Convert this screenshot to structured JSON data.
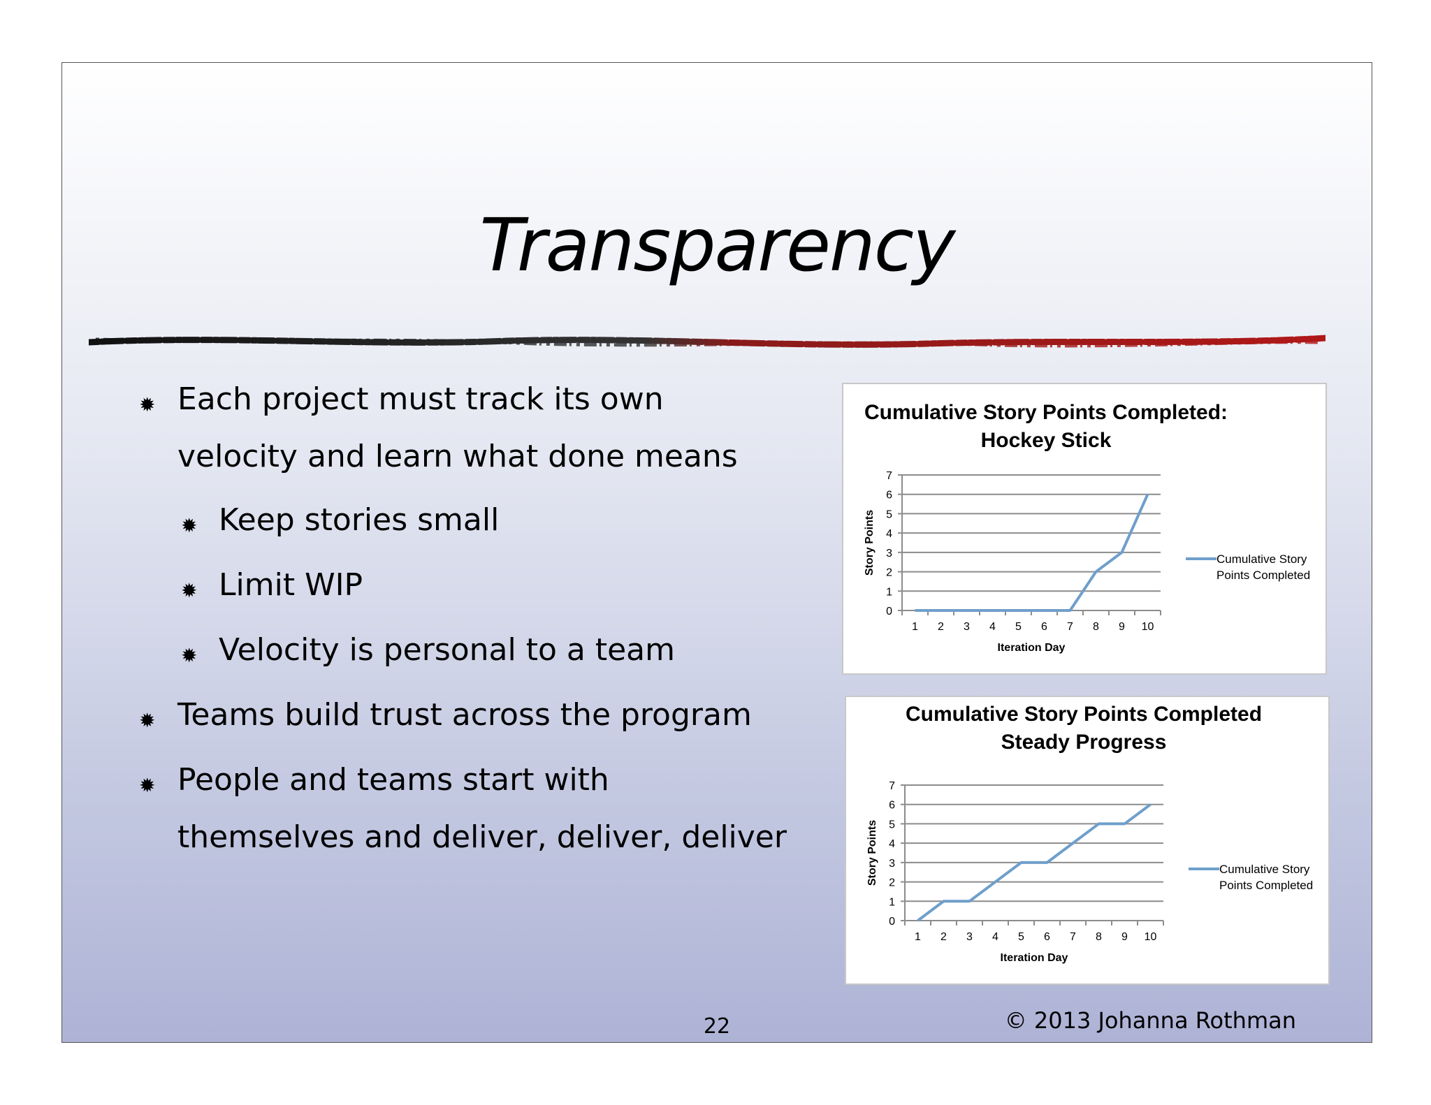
{
  "slide": {
    "title": "Transparency",
    "page_number": "22",
    "copyright": "© 2013 Johanna Rothman",
    "bullets": [
      {
        "level": 1,
        "lines": [
          "Each project must track its own",
          "velocity and learn what done means"
        ]
      },
      {
        "level": 2,
        "lines": [
          "Keep stories small"
        ]
      },
      {
        "level": 2,
        "lines": [
          "Limit WIP"
        ]
      },
      {
        "level": 2,
        "lines": [
          "Velocity is personal to a team"
        ]
      },
      {
        "level": 1,
        "lines": [
          "Teams build trust across the program"
        ]
      },
      {
        "level": 1,
        "lines": [
          "People and teams start with",
          "themselves and deliver, deliver, deliver"
        ]
      }
    ],
    "bullet_glyph": "✹"
  },
  "chart_data": [
    {
      "type": "line",
      "title": [
        "Cumulative Story Points Completed:",
        "Hockey Stick"
      ],
      "xlabel": "Iteration Day",
      "ylabel": "Story Points",
      "categories": [
        "1",
        "2",
        "3",
        "4",
        "5",
        "6",
        "7",
        "8",
        "9",
        "10"
      ],
      "ylim": [
        0,
        7
      ],
      "yticks": [
        "0",
        "1",
        "2",
        "3",
        "4",
        "5",
        "6",
        "7"
      ],
      "grid": true,
      "legend_position": "right",
      "series": [
        {
          "name": "Cumulative Story Points Completed",
          "legend_lines": [
            "Cumulative Story",
            "Points Completed"
          ],
          "color": "#6f9fcb",
          "values": [
            0,
            0,
            0,
            0,
            0,
            0,
            0,
            2,
            3,
            6
          ]
        }
      ]
    },
    {
      "type": "line",
      "title": [
        "Cumulative Story Points Completed",
        "Steady Progress"
      ],
      "xlabel": "Iteration Day",
      "ylabel": "Story Points",
      "categories": [
        "1",
        "2",
        "3",
        "4",
        "5",
        "6",
        "7",
        "8",
        "9",
        "10"
      ],
      "ylim": [
        0,
        7
      ],
      "yticks": [
        "0",
        "1",
        "2",
        "3",
        "4",
        "5",
        "6",
        "7"
      ],
      "grid": true,
      "legend_position": "right",
      "series": [
        {
          "name": "Cumulative Story Points Completed",
          "legend_lines": [
            "Cumulative Story",
            "Points Completed"
          ],
          "color": "#6f9fcb",
          "values": [
            0,
            1,
            1,
            2,
            3,
            3,
            4,
            5,
            5,
            6
          ]
        }
      ]
    }
  ]
}
